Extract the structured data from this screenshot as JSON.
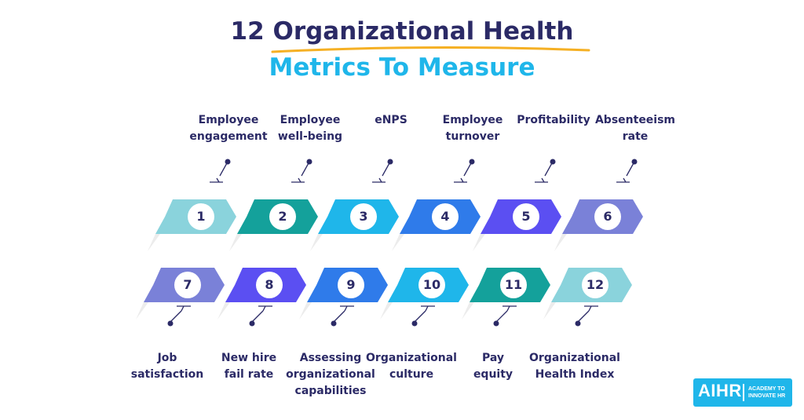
{
  "title": {
    "line1": "12 Organizational Health",
    "line2": "Metrics To Measure",
    "underline_color": "#f5b024",
    "line1_color": "#2b2a66",
    "line2_color": "#1fb6ea"
  },
  "top_row": [
    {
      "number": "1",
      "label": "Employee\nengagement",
      "color": "#8ad3dc"
    },
    {
      "number": "2",
      "label": "Employee\nwell-being",
      "color": "#14a19b"
    },
    {
      "number": "3",
      "label": "eNPS",
      "color": "#1fb6ea"
    },
    {
      "number": "4",
      "label": "Employee\nturnover",
      "color": "#2f7bea"
    },
    {
      "number": "5",
      "label": "Profitability",
      "color": "#5b4ff2"
    },
    {
      "number": "6",
      "label": "Absenteeism\nrate",
      "color": "#7a81d8"
    }
  ],
  "bottom_row": [
    {
      "number": "7",
      "label": "Job\nsatisfaction",
      "color": "#7a81d8"
    },
    {
      "number": "8",
      "label": "New hire\nfail rate",
      "color": "#5b4ff2"
    },
    {
      "number": "9",
      "label": "Assessing\norganizational\ncapabilities",
      "color": "#2f7bea"
    },
    {
      "number": "10",
      "label": "Organizational\nculture",
      "color": "#1fb6ea"
    },
    {
      "number": "11",
      "label": "Pay\nequity",
      "color": "#14a19b"
    },
    {
      "number": "12",
      "label": "Organizational\nHealth Index",
      "color": "#8ad3dc"
    }
  ],
  "connector_color": "#2b2a66",
  "logo": {
    "main": "AIHR",
    "tagline": "ACADEMY TO INNOVATE HR",
    "color": "#1fb6ea"
  }
}
